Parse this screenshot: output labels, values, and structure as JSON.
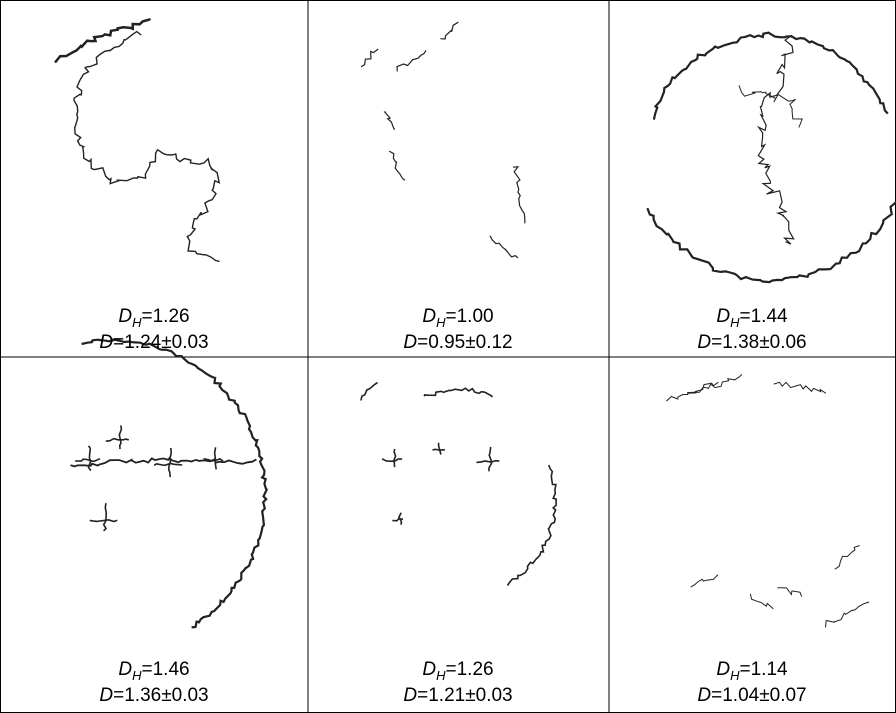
{
  "panels": [
    {
      "line1": {
        "symbol": "D",
        "subscript": "H",
        "text": "=1.26"
      },
      "line2": {
        "symbol": "D",
        "text": "=1.24±0.03"
      }
    },
    {
      "line1": {
        "symbol": "D",
        "subscript": "H",
        "text": "=1.00"
      },
      "line2": {
        "symbol": "D",
        "text": "=0.95±0.12"
      }
    },
    {
      "line1": {
        "symbol": "D",
        "subscript": "H",
        "text": "=1.44"
      },
      "line2": {
        "symbol": "D",
        "text": "=1.38±0.06"
      }
    },
    {
      "line1": {
        "symbol": "D",
        "subscript": "H",
        "text": "=1.46"
      },
      "line2": {
        "symbol": "D",
        "text": "=1.36±0.03"
      }
    },
    {
      "line1": {
        "symbol": "D",
        "subscript": "H",
        "text": "=1.26"
      },
      "line2": {
        "symbol": "D",
        "text": "=1.21±0.03"
      }
    },
    {
      "line1": {
        "symbol": "D",
        "subscript": "H",
        "text": "=1.14"
      },
      "line2": {
        "symbol": "D",
        "text": "=1.04±0.07"
      }
    }
  ]
}
